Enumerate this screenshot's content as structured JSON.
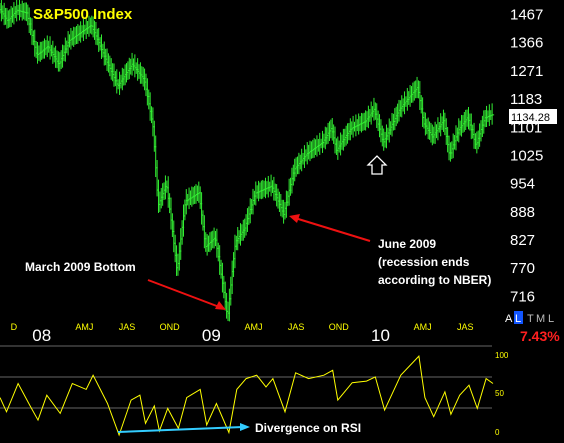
{
  "colors": {
    "background": "#000000",
    "price": "#33ee33",
    "title": "#ffff00",
    "annotation_arrow": "#ee1111",
    "rsi": "#ffff00",
    "divergence_line": "#33ccff",
    "percent": "#ff2020"
  },
  "chart_data": [
    {
      "type": "line",
      "style": "ohlc bars",
      "title": "S&P500 Index",
      "last_price_label": "1134.28",
      "y_ticks": [
        "1467",
        "1366",
        "1271",
        "1183",
        "1101",
        "1025",
        "954",
        "888",
        "827",
        "770",
        "716"
      ],
      "y_tick_values": [
        1467,
        1366,
        1271,
        1183,
        1101,
        1025,
        954,
        888,
        827,
        770,
        716
      ],
      "ylim": [
        676,
        1500
      ],
      "y_scale": "log",
      "x_year_labels": [
        "08",
        "09",
        "10"
      ],
      "x_month_labels": [
        "D",
        "AMJ",
        "JAS",
        "OND",
        "AMJ",
        "JAS",
        "OND",
        "AMJ",
        "JAS"
      ],
      "x_month_label_dates": [
        "2007-12",
        "2008-05",
        "2008-08",
        "2008-11",
        "2009-05",
        "2009-08",
        "2009-11",
        "2010-05",
        "2010-08"
      ],
      "xlim": [
        "2007-11-01",
        "2010-10-15"
      ],
      "series": [
        {
          "points": [
            [
              "2007-11-01",
              1490
            ],
            [
              "2007-11-20",
              1440
            ],
            [
              "2007-12-10",
              1480
            ],
            [
              "2007-12-31",
              1470
            ],
            [
              "2008-01-22",
              1320
            ],
            [
              "2008-02-15",
              1350
            ],
            [
              "2008-03-10",
              1290
            ],
            [
              "2008-04-01",
              1370
            ],
            [
              "2008-05-19",
              1425
            ],
            [
              "2008-06-15",
              1320
            ],
            [
              "2008-07-15",
              1220
            ],
            [
              "2008-08-15",
              1290
            ],
            [
              "2008-09-10",
              1240
            ],
            [
              "2008-09-29",
              1100
            ],
            [
              "2008-10-10",
              900
            ],
            [
              "2008-10-28",
              950
            ],
            [
              "2008-11-20",
              760
            ],
            [
              "2008-12-08",
              910
            ],
            [
              "2009-01-06",
              930
            ],
            [
              "2009-01-20",
              810
            ],
            [
              "2009-02-10",
              830
            ],
            [
              "2009-03-09",
              676
            ],
            [
              "2009-03-26",
              820
            ],
            [
              "2009-04-15",
              850
            ],
            [
              "2009-05-08",
              929
            ],
            [
              "2009-06-12",
              946
            ],
            [
              "2009-07-08",
              880
            ],
            [
              "2009-07-31",
              987
            ],
            [
              "2009-08-28",
              1028
            ],
            [
              "2009-09-30",
              1057
            ],
            [
              "2009-10-19",
              1097
            ],
            [
              "2009-10-30",
              1036
            ],
            [
              "2009-11-30",
              1095
            ],
            [
              "2009-12-31",
              1115
            ],
            [
              "2010-01-19",
              1150
            ],
            [
              "2010-02-08",
              1056
            ],
            [
              "2010-03-15",
              1150
            ],
            [
              "2010-04-23",
              1217
            ],
            [
              "2010-05-06",
              1110
            ],
            [
              "2010-05-25",
              1072
            ],
            [
              "2010-06-18",
              1117
            ],
            [
              "2010-07-01",
              1022
            ],
            [
              "2010-07-20",
              1090
            ],
            [
              "2010-08-09",
              1127
            ],
            [
              "2010-08-27",
              1048
            ],
            [
              "2010-09-15",
              1125
            ],
            [
              "2010-09-30",
              1134
            ]
          ]
        }
      ],
      "annotations": [
        {
          "id": "march",
          "text": "March 2009 Bottom",
          "points_to": [
            "2009-03-09",
            676
          ]
        },
        {
          "id": "june",
          "lines": [
            "June 2009",
            "(recession ends",
            "according to NBER)"
          ],
          "points_to": [
            "2009-06-30",
            900
          ]
        }
      ],
      "indicator_marks": {
        "flag_letters": [
          "A",
          "L",
          "T",
          "M",
          "L"
        ],
        "percent_change": "7.43%"
      }
    },
    {
      "type": "line",
      "indicator": "RSI",
      "y_ticks": [
        "100",
        "50",
        "0"
      ],
      "ylim": [
        0,
        100
      ],
      "reference_lines": [
        70,
        30
      ],
      "xlim": [
        "2007-11-01",
        "2010-10-15"
      ],
      "series": [
        {
          "points": [
            [
              "2007-11-01",
              45
            ],
            [
              "2007-11-15",
              28
            ],
            [
              "2007-12-10",
              62
            ],
            [
              "2008-01-05",
              35
            ],
            [
              "2008-01-22",
              18
            ],
            [
              "2008-02-10",
              48
            ],
            [
              "2008-03-10",
              26
            ],
            [
              "2008-04-05",
              62
            ],
            [
              "2008-05-05",
              55
            ],
            [
              "2008-05-20",
              72
            ],
            [
              "2008-06-20",
              38
            ],
            [
              "2008-07-15",
              0
            ],
            [
              "2008-08-10",
              42
            ],
            [
              "2008-08-29",
              48
            ],
            [
              "2008-09-10",
              14
            ],
            [
              "2008-09-29",
              35
            ],
            [
              "2008-10-10",
              5
            ],
            [
              "2008-10-28",
              32
            ],
            [
              "2008-11-20",
              8
            ],
            [
              "2008-12-08",
              45
            ],
            [
              "2009-01-06",
              55
            ],
            [
              "2009-01-20",
              12
            ],
            [
              "2009-02-10",
              38
            ],
            [
              "2009-03-09",
              3
            ],
            [
              "2009-03-26",
              55
            ],
            [
              "2009-04-15",
              68
            ],
            [
              "2009-05-08",
              72
            ],
            [
              "2009-05-28",
              58
            ],
            [
              "2009-06-12",
              68
            ],
            [
              "2009-07-08",
              28
            ],
            [
              "2009-07-31",
              75
            ],
            [
              "2009-08-28",
              68
            ],
            [
              "2009-09-30",
              72
            ],
            [
              "2009-10-19",
              78
            ],
            [
              "2009-10-30",
              42
            ],
            [
              "2009-11-30",
              63
            ],
            [
              "2009-12-31",
              65
            ],
            [
              "2010-01-19",
              70
            ],
            [
              "2010-02-08",
              30
            ],
            [
              "2010-03-15",
              72
            ],
            [
              "2010-04-23",
              95
            ],
            [
              "2010-05-06",
              45
            ],
            [
              "2010-05-25",
              22
            ],
            [
              "2010-06-18",
              52
            ],
            [
              "2010-07-01",
              25
            ],
            [
              "2010-07-20",
              48
            ],
            [
              "2010-08-09",
              60
            ],
            [
              "2010-08-27",
              32
            ],
            [
              "2010-09-15",
              68
            ],
            [
              "2010-09-30",
              62
            ]
          ]
        }
      ],
      "divergence": {
        "label": "Divergence on RSI",
        "from": [
          "2008-07-15",
          0
        ],
        "to": [
          "2009-03-09",
          3
        ]
      }
    }
  ]
}
